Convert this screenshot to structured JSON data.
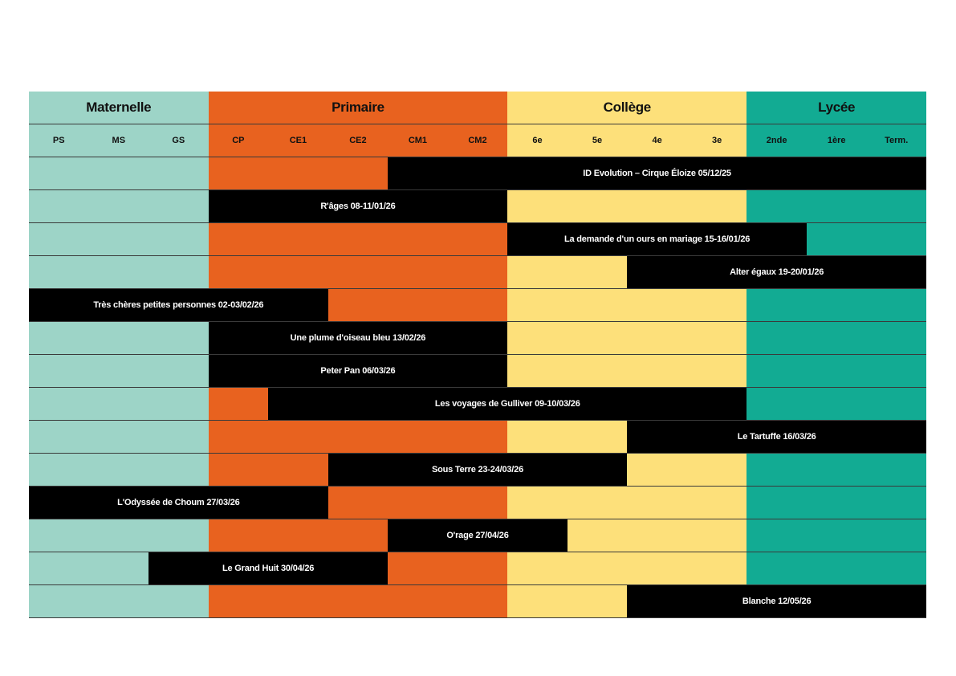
{
  "colors": {
    "maternelle": "#9dd4c7",
    "primaire": "#e8621f",
    "college": "#fde07a",
    "lycee": "#12ab93",
    "event": "#000000"
  },
  "levels": [
    {
      "key": "maternelle",
      "label": "Maternelle",
      "span": 3
    },
    {
      "key": "primaire",
      "label": "Primaire",
      "span": 5
    },
    {
      "key": "college",
      "label": "Collège",
      "span": 4
    },
    {
      "key": "lycee",
      "label": "Lycée",
      "span": 3
    }
  ],
  "grades": [
    {
      "label": "PS",
      "level": "maternelle"
    },
    {
      "label": "MS",
      "level": "maternelle"
    },
    {
      "label": "GS",
      "level": "maternelle"
    },
    {
      "label": "CP",
      "level": "primaire"
    },
    {
      "label": "CE1",
      "level": "primaire"
    },
    {
      "label": "CE2",
      "level": "primaire"
    },
    {
      "label": "CM1",
      "level": "primaire"
    },
    {
      "label": "CM2",
      "level": "primaire"
    },
    {
      "label": "6e",
      "level": "college"
    },
    {
      "label": "5e",
      "level": "college"
    },
    {
      "label": "4e",
      "level": "college"
    },
    {
      "label": "3e",
      "level": "college"
    },
    {
      "label": "2nde",
      "level": "lycee"
    },
    {
      "label": "1ère",
      "level": "lycee"
    },
    {
      "label": "Term.",
      "level": "lycee"
    }
  ],
  "events": [
    {
      "label": "ID Evolution – Cirque Éloize 05/12/25",
      "from": "CM1",
      "to": "Term."
    },
    {
      "label": "R'âges 08-11/01/26",
      "from": "CP",
      "to": "CM2"
    },
    {
      "label": "La demande d'un ours en mariage 15-16/01/26",
      "from": "6e",
      "to": "2nde"
    },
    {
      "label": "Alter égaux 19-20/01/26",
      "from": "4e",
      "to": "Term."
    },
    {
      "label": "Très chères petites personnes 02-03/02/26",
      "from": "PS",
      "to": "CE1"
    },
    {
      "label": "Une plume d'oiseau bleu 13/02/26",
      "from": "CP",
      "to": "CM2"
    },
    {
      "label": "Peter Pan 06/03/26",
      "from": "CP",
      "to": "CM2"
    },
    {
      "label": "Les voyages de Gulliver 09-10/03/26",
      "from": "CE1",
      "to": "3e"
    },
    {
      "label": "Le Tartuffe 16/03/26",
      "from": "4e",
      "to": "Term."
    },
    {
      "label": "Sous Terre 23-24/03/26",
      "from": "CE2",
      "to": "5e"
    },
    {
      "label": "L'Odyssée de Choum 27/03/26",
      "from": "PS",
      "to": "CE1"
    },
    {
      "label": "O'rage 27/04/26",
      "from": "CM1",
      "to": "6e"
    },
    {
      "label": "Le Grand Huit 30/04/26",
      "from": "GS",
      "to": "CE2"
    },
    {
      "label": "Blanche 12/05/26",
      "from": "4e",
      "to": "Term."
    }
  ]
}
